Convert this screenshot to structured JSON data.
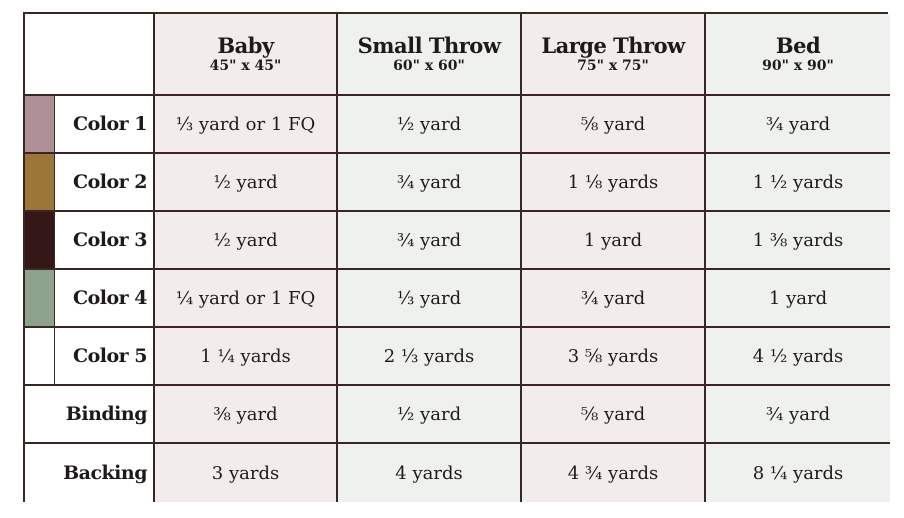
{
  "colors": {
    "border": "#3a2622",
    "swatch_1": "#ad8f95",
    "swatch_2": "#9c7538",
    "swatch_3": "#341817",
    "swatch_4": "#8ea38c",
    "swatch_5": "#ffffff",
    "odd_column_bg": "#f2ecec",
    "even_column_bg": "#eef1ee"
  },
  "headers": [
    {
      "name": "Baby",
      "size": "45\" x 45\""
    },
    {
      "name": "Small Throw",
      "size": "60\" x 60\""
    },
    {
      "name": "Large Throw",
      "size": "75\" x 75\""
    },
    {
      "name": "Bed",
      "size": "90\" x 90\""
    }
  ],
  "rows": [
    {
      "label": "Color 1",
      "values": [
        "⅓ yard or 1 FQ",
        "½ yard",
        "⅝ yard",
        "¾ yard"
      ]
    },
    {
      "label": "Color 2",
      "values": [
        "½ yard",
        "¾ yard",
        "1 ⅛ yards",
        "1 ½ yards"
      ]
    },
    {
      "label": "Color 3",
      "values": [
        "½ yard",
        "¾ yard",
        "1 yard",
        "1 ⅜ yards"
      ]
    },
    {
      "label": "Color 4",
      "values": [
        "¼ yard or 1 FQ",
        "⅓ yard",
        "¾ yard",
        "1 yard"
      ]
    },
    {
      "label": "Color 5",
      "values": [
        "1 ¼ yards",
        "2 ⅓ yards",
        "3 ⅝ yards",
        "4 ½ yards"
      ]
    },
    {
      "label": "Binding",
      "values": [
        "⅜ yard",
        "½ yard",
        "⅝ yard",
        "¾ yard"
      ]
    },
    {
      "label": "Backing",
      "values": [
        "3 yards",
        "4 yards",
        "4 ¾ yards",
        "8 ¼ yards"
      ]
    }
  ]
}
